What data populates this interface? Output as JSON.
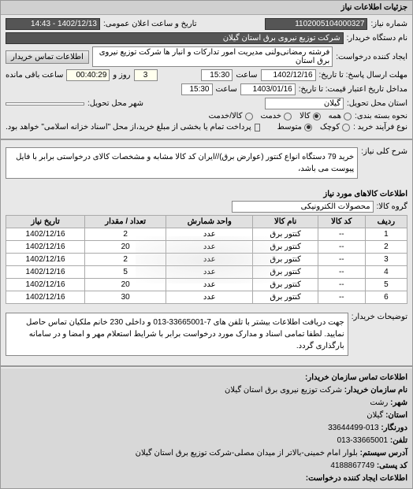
{
  "panel_title": "جزئیات اطلاعات نیاز",
  "need_no_label": "شماره نیاز:",
  "need_no": "1102005104000327",
  "announce_label": "تاریخ و ساعت اعلان عمومی:",
  "announce_value": "1402/12/13 - 14:43",
  "buyer_name_label": "نام دستگاه خریدار:",
  "buyer_name": "شرکت توزیع نیروی برق استان گیلان",
  "requester_label": "ایجاد کننده درخواست:",
  "requester_name": "فرشته رمضانی‌ولنی مدیریت امور تدارکات و انبار ها شرکت توزیع نیروی برق استان",
  "requester_btn": "اطلاعات تماس خریدار",
  "deadline_send_label": "مهلت ارسال پاسخ: تا تاریخ:",
  "deadline_send_date": "1402/12/16",
  "deadline_send_time_label": "ساعت",
  "deadline_send_time": "15:30",
  "remain_days": "3",
  "remain_days_label": "روز و",
  "remain_time": "00:40:29",
  "remain_tail": "ساعت باقی مانده",
  "valid_until_label": "مداخل تاریخ اعتبار قیمت: تا تاریخ:",
  "valid_until_date": "1403/01/16",
  "valid_until_time": "15:30",
  "delivery_loc_label": "استان محل تحویل:",
  "delivery_loc": "گیلان",
  "city_label": "شهر محل تحویل:",
  "pkg_type_label": "نحوه بسته بندی:",
  "pkg_options": {
    "all": "همه",
    "goods": "کالا",
    "service": "خدمت",
    "partial": "کالا/خدمت"
  },
  "pkg_selected": "goods",
  "process_label": "نوع فرآیند خرید :",
  "process_options": {
    "small": "کوچک",
    "medium": "متوسط"
  },
  "process_selected": "medium",
  "prepay_chk": "پرداخت تمام یا بخشی از مبلغ خرید،از محل \"اسناد خزانه اسلامی\" خواهد بود.",
  "desc_label": "شرح کلی نیاز:",
  "desc_text": "خرید 79 دستگاه انواع کنتور (عوارض برق)//ایران کد کالا مشابه و مشخصات کالای درخواستی برابر با فایل پیوست می باشد،",
  "goods_label": "اطلاعات کالاهای مورد نیاز",
  "group_label": "گروه کالا:",
  "group_value": "محصولات الکترونیکی",
  "table": {
    "headers": [
      "ردیف",
      "کد کالا",
      "نام کالا",
      "واحد شمارش",
      "تعداد / مقدار",
      "تاریخ نیاز"
    ],
    "rows": [
      [
        "1",
        "--",
        "کنتور برق",
        "عدد",
        "2",
        "1402/12/16"
      ],
      [
        "2",
        "--",
        "کنتور برق",
        "عدد",
        "20",
        "1402/12/16"
      ],
      [
        "3",
        "--",
        "کنتور برق",
        "عدد",
        "2",
        "1402/12/16"
      ],
      [
        "4",
        "--",
        "کنتور برق",
        "عدد",
        "5",
        "1402/12/16"
      ],
      [
        "5",
        "--",
        "کنتور برق",
        "عدد",
        "20",
        "1402/12/16"
      ],
      [
        "6",
        "--",
        "کنتور برق",
        "عدد",
        "30",
        "1402/12/16"
      ]
    ]
  },
  "notes_label": "توضیحات خریدار:",
  "notes_text": "جهت دریافت اطلاعات بیشتر با تلفن های 7-33665001-013 و داخلی 230 خانم ملکیان تماس حاصل نمایید. لطفا تمامی اسناد و مدارک مورد درخواست برابر با شرایط استعلام مهر و امضا و در سامانه بارگذاری گردد.",
  "contact_header": "اطلاعات تماس سازمان خریدار:",
  "contact": {
    "org_label": "نام سازمان خریدار:",
    "org": "شرکت توزیع نیروی برق استان گیلان",
    "city_label": "شهر:",
    "city": "رشت",
    "prov_label": "استان:",
    "prov": "گیلان",
    "fax_label": "دورنگار:",
    "fax": "013-33644499",
    "tel_label": "تلفن:",
    "tel": "33665001-013",
    "addr_label": "آدرس سیستم:",
    "addr": "بلوار امام خمینی-بالاتر از میدان مصلی-شرکت توزیع برق استان گیلان",
    "post_label": "کد پستی:",
    "post": "4188867749",
    "creator_label": "اطلاعات ایجاد کننده درخواست:"
  }
}
